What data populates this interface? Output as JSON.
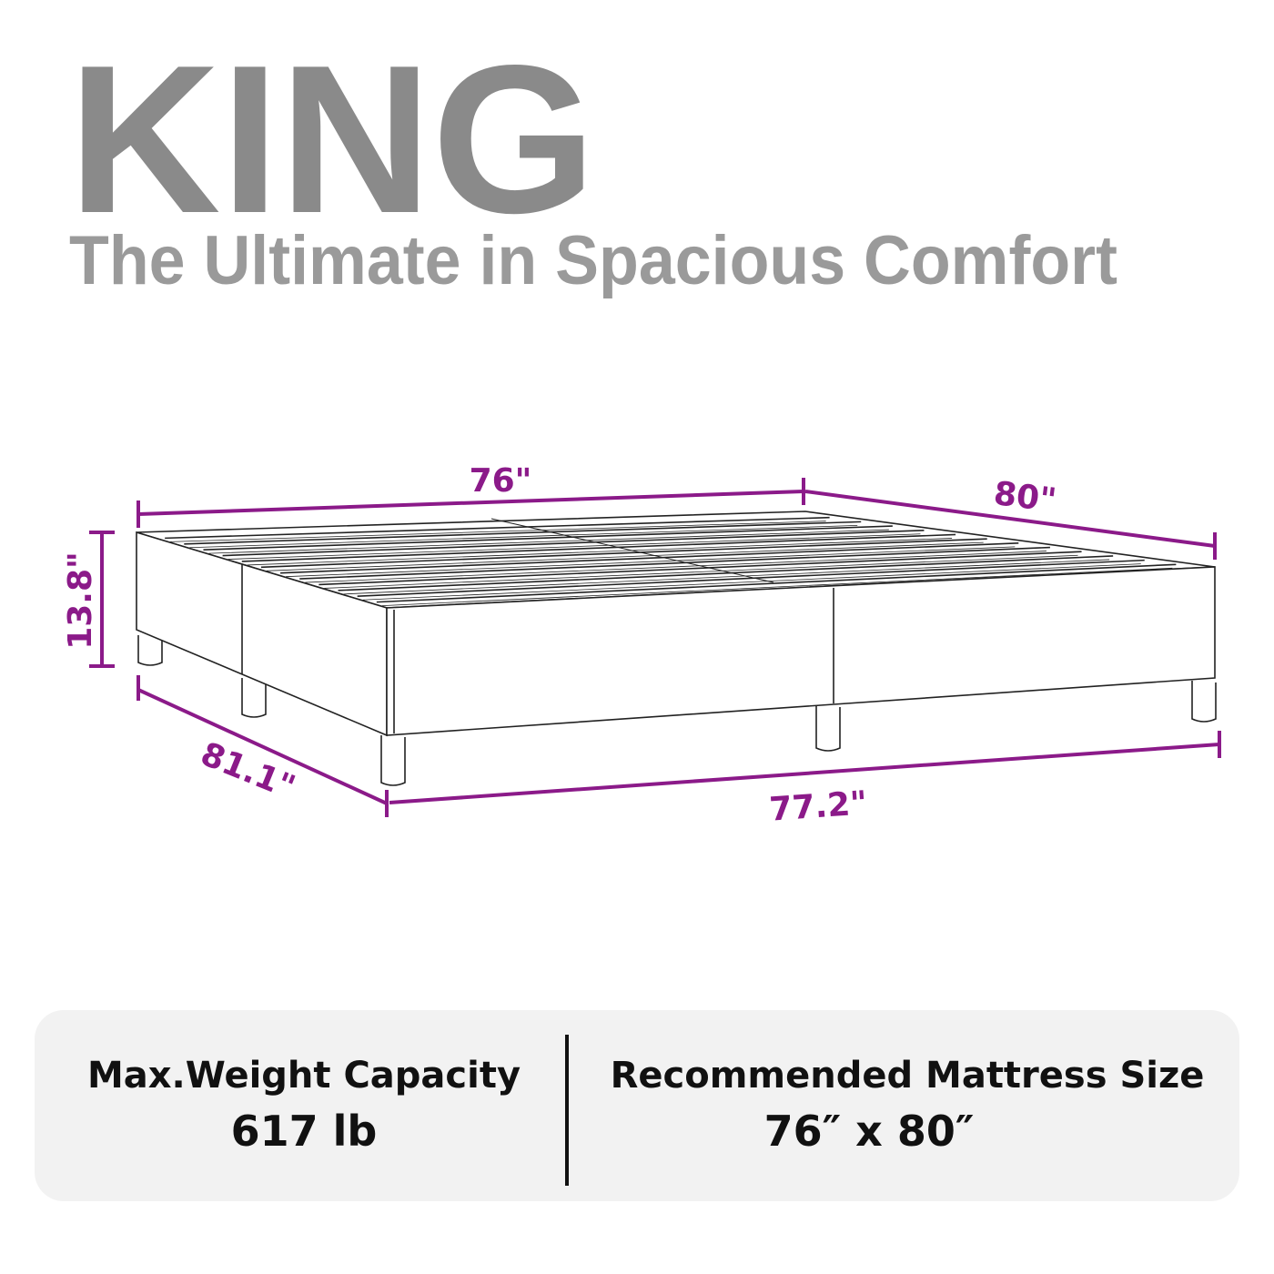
{
  "header": {
    "title": "KING",
    "subtitle": "The Ultimate in Spacious Comfort"
  },
  "dimensions": {
    "top_width": "76\"",
    "top_length": "80\"",
    "height": "13.8\"",
    "bottom_length": "81.1\"",
    "bottom_width": "77.2\""
  },
  "specs": {
    "weight_label": "Max.Weight Capacity",
    "weight_value": "617 lb",
    "mattress_label": "Recommended Mattress Size",
    "mattress_value": "76″ x 80″"
  },
  "colors": {
    "title": "#8a8a8a",
    "subtitle": "#9a9a9a",
    "dimension": "#8b1a89",
    "panel": "#f2f2f2"
  }
}
